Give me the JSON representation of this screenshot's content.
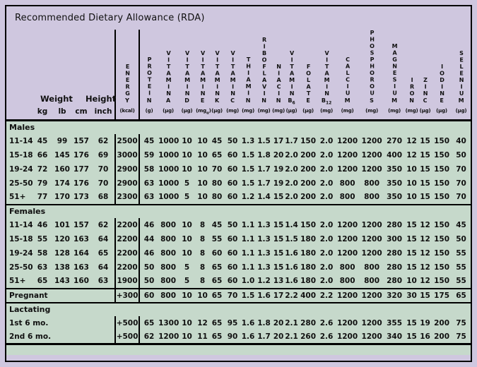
{
  "title": "Recommended Dietary Allowance (RDA)",
  "colors": {
    "lavender": "#cfc7df",
    "green": "#c6d9cb",
    "line": "#000000"
  },
  "header": {
    "weight_label": "Weight",
    "height_label": "Height",
    "sub_labels": [
      "kg",
      "lb",
      "cm",
      "inch"
    ],
    "columns": [
      {
        "key": "energy",
        "letters": "ENERG",
        "last": "Y",
        "last_sub": "",
        "unit": "(kcal)",
        "unit_sub": "",
        "unit_end": ""
      },
      {
        "key": "protein",
        "letters": "PROTEI",
        "last": "N",
        "last_sub": "",
        "unit": "(g)",
        "unit_sub": "",
        "unit_end": ""
      },
      {
        "key": "vitamin-a",
        "letters": "VITAMIN",
        "last": "A",
        "last_sub": "",
        "unit": "(µg)",
        "unit_sub": "",
        "unit_end": ""
      },
      {
        "key": "vitamin-d",
        "letters": "VITAMIN",
        "last": "D",
        "last_sub": "",
        "unit": "(µg)",
        "unit_sub": "",
        "unit_end": ""
      },
      {
        "key": "vitamin-e",
        "letters": "VITAMIN",
        "last": "E",
        "last_sub": "",
        "unit": "(mg",
        "unit_sub": "α",
        "unit_end": ")"
      },
      {
        "key": "vitamin-k",
        "letters": "VITAMIN",
        "last": "K",
        "last_sub": "",
        "unit": "(µg)",
        "unit_sub": "",
        "unit_end": ""
      },
      {
        "key": "vitamin-c",
        "letters": "VITAMIN",
        "last": "C",
        "last_sub": "",
        "unit": "(mg)",
        "unit_sub": "",
        "unit_end": ""
      },
      {
        "key": "thiamin",
        "letters": "THIAMI",
        "last": "N",
        "last_sub": "",
        "unit": "(mg)",
        "unit_sub": "",
        "unit_end": ""
      },
      {
        "key": "riboflavin",
        "letters": "RIBOFLAVI",
        "last": "N",
        "last_sub": "",
        "unit": "(mg)",
        "unit_sub": "",
        "unit_end": ""
      },
      {
        "key": "niacin",
        "letters": "NIACI",
        "last": "N",
        "last_sub": "",
        "unit": "(mg)",
        "unit_sub": "",
        "unit_end": ""
      },
      {
        "key": "vitamin-b6",
        "letters": "VITAMIN",
        "last": "B",
        "last_sub": "6",
        "unit": "(µg)",
        "unit_sub": "",
        "unit_end": ""
      },
      {
        "key": "folate",
        "letters": "FOLAT",
        "last": "E",
        "last_sub": "",
        "unit": "(µg)",
        "unit_sub": "",
        "unit_end": ""
      },
      {
        "key": "vitamin-b12",
        "letters": "VITAMIN",
        "last": "B",
        "last_sub": "12",
        "unit": "(mg)",
        "unit_sub": "",
        "unit_end": ""
      },
      {
        "key": "calcium",
        "letters": "CALCIU",
        "last": "M",
        "last_sub": "",
        "unit": "(mg)",
        "unit_sub": "",
        "unit_end": ""
      },
      {
        "key": "phosphorous",
        "letters": "PHOSPHOROU",
        "last": "S",
        "last_sub": "",
        "unit": "(mg)",
        "unit_sub": "",
        "unit_end": ""
      },
      {
        "key": "magnesium",
        "letters": "MAGNESIU",
        "last": "M",
        "last_sub": "",
        "unit": "(mg)",
        "unit_sub": "",
        "unit_end": ""
      },
      {
        "key": "iron",
        "letters": "IRO",
        "last": "N",
        "last_sub": "",
        "unit": "(mg)",
        "unit_sub": "",
        "unit_end": ""
      },
      {
        "key": "zinc",
        "letters": "ZIN",
        "last": "C",
        "last_sub": "",
        "unit": "(µg)",
        "unit_sub": "",
        "unit_end": ""
      },
      {
        "key": "iodine",
        "letters": "IODIN",
        "last": "E",
        "last_sub": "",
        "unit": "(µg)",
        "unit_sub": "",
        "unit_end": ""
      },
      {
        "key": "selenium",
        "letters": "SELENIU",
        "last": "M",
        "last_sub": "",
        "unit": "(µg)",
        "unit_sub": "",
        "unit_end": ""
      }
    ]
  },
  "sections": [
    {
      "name": "males",
      "label": "Males",
      "rows": [
        {
          "group": "11-14",
          "kg": "45",
          "lb": "99",
          "cm": "157",
          "inch": "62",
          "values": [
            "2500",
            "45",
            "1000",
            "10",
            "10",
            "45",
            "50",
            "1.3",
            "1.5",
            "17",
            "1.7",
            "150",
            "2.0",
            "1200",
            "1200",
            "270",
            "12",
            "15",
            "150",
            "40"
          ]
        },
        {
          "group": "15-18",
          "kg": "66",
          "lb": "145",
          "cm": "176",
          "inch": "69",
          "values": [
            "3000",
            "59",
            "1000",
            "10",
            "10",
            "65",
            "60",
            "1.5",
            "1.8",
            "20",
            "2.0",
            "200",
            "2.0",
            "1200",
            "1200",
            "400",
            "12",
            "15",
            "150",
            "50"
          ]
        },
        {
          "group": "19-24",
          "kg": "72",
          "lb": "160",
          "cm": "177",
          "inch": "70",
          "values": [
            "2900",
            "58",
            "1000",
            "10",
            "10",
            "70",
            "60",
            "1.5",
            "1.7",
            "19",
            "2.0",
            "200",
            "2.0",
            "1200",
            "1200",
            "350",
            "10",
            "15",
            "150",
            "70"
          ]
        },
        {
          "group": "25-50",
          "kg": "79",
          "lb": "174",
          "cm": "176",
          "inch": "70",
          "values": [
            "2900",
            "63",
            "1000",
            "5",
            "10",
            "80",
            "60",
            "1.5",
            "1.7",
            "19",
            "2.0",
            "200",
            "2.0",
            "800",
            "800",
            "350",
            "10",
            "15",
            "150",
            "70"
          ]
        },
        {
          "group": "51+",
          "kg": "77",
          "lb": "170",
          "cm": "173",
          "inch": "68",
          "values": [
            "2300",
            "63",
            "1000",
            "5",
            "10",
            "80",
            "60",
            "1.2",
            "1.4",
            "15",
            "2.0",
            "200",
            "2.0",
            "800",
            "800",
            "350",
            "10",
            "15",
            "150",
            "70"
          ]
        }
      ]
    },
    {
      "name": "females",
      "label": "Females",
      "rows": [
        {
          "group": "11-14",
          "kg": "46",
          "lb": "101",
          "cm": "157",
          "inch": "62",
          "values": [
            "2200",
            "46",
            "800",
            "10",
            "8",
            "45",
            "50",
            "1.1",
            "1.3",
            "15",
            "1.4",
            "150",
            "2.0",
            "1200",
            "1200",
            "280",
            "15",
            "12",
            "150",
            "45"
          ]
        },
        {
          "group": "15-18",
          "kg": "55",
          "lb": "120",
          "cm": "163",
          "inch": "64",
          "values": [
            "2200",
            "44",
            "800",
            "10",
            "8",
            "55",
            "60",
            "1.1",
            "1.3",
            "15",
            "1.5",
            "180",
            "2.0",
            "1200",
            "1200",
            "300",
            "15",
            "12",
            "150",
            "50"
          ]
        },
        {
          "group": "19-24",
          "kg": "58",
          "lb": "128",
          "cm": "164",
          "inch": "65",
          "values": [
            "2200",
            "46",
            "800",
            "10",
            "8",
            "60",
            "60",
            "1.1",
            "1.3",
            "15",
            "1.6",
            "180",
            "2.0",
            "1200",
            "1200",
            "280",
            "15",
            "12",
            "150",
            "55"
          ]
        },
        {
          "group": "25-50",
          "kg": "63",
          "lb": "138",
          "cm": "163",
          "inch": "64",
          "values": [
            "2200",
            "50",
            "800",
            "5",
            "8",
            "65",
            "60",
            "1.1",
            "1.3",
            "15",
            "1.6",
            "180",
            "2.0",
            "800",
            "800",
            "280",
            "15",
            "12",
            "150",
            "55"
          ]
        },
        {
          "group": "51+",
          "kg": "65",
          "lb": "143",
          "cm": "160",
          "inch": "63",
          "values": [
            "1900",
            "50",
            "800",
            "5",
            "8",
            "65",
            "60",
            "1.0",
            "1.2",
            "13",
            "1.6",
            "180",
            "2.0",
            "800",
            "800",
            "280",
            "10",
            "12",
            "150",
            "55"
          ]
        }
      ]
    },
    {
      "name": "pregnant",
      "label": null,
      "rows": [
        {
          "group": "Pregnant",
          "kg": "",
          "lb": "",
          "cm": "",
          "inch": "",
          "values": [
            "+300",
            "60",
            "800",
            "10",
            "10",
            "65",
            "70",
            "1.5",
            "1.6",
            "17",
            "2.2",
            "400",
            "2.2",
            "1200",
            "1200",
            "320",
            "30",
            "15",
            "175",
            "65"
          ]
        }
      ]
    },
    {
      "name": "lactating",
      "label": "Lactating",
      "rows": [
        {
          "group": "1st 6 mo.",
          "kg": "",
          "lb": "",
          "cm": "",
          "inch": "",
          "values": [
            "+500",
            "65",
            "1300",
            "10",
            "12",
            "65",
            "95",
            "1.6",
            "1.8",
            "20",
            "2.1",
            "280",
            "2.6",
            "1200",
            "1200",
            "355",
            "15",
            "19",
            "200",
            "75"
          ]
        },
        {
          "group": "2nd 6 mo.",
          "kg": "",
          "lb": "",
          "cm": "",
          "inch": "",
          "values": [
            "+500",
            "62",
            "1200",
            "10",
            "11",
            "65",
            "90",
            "1.6",
            "1.7",
            "20",
            "2.1",
            "260",
            "2.6",
            "1200",
            "1200",
            "340",
            "15",
            "16",
            "200",
            "75"
          ]
        }
      ]
    }
  ]
}
